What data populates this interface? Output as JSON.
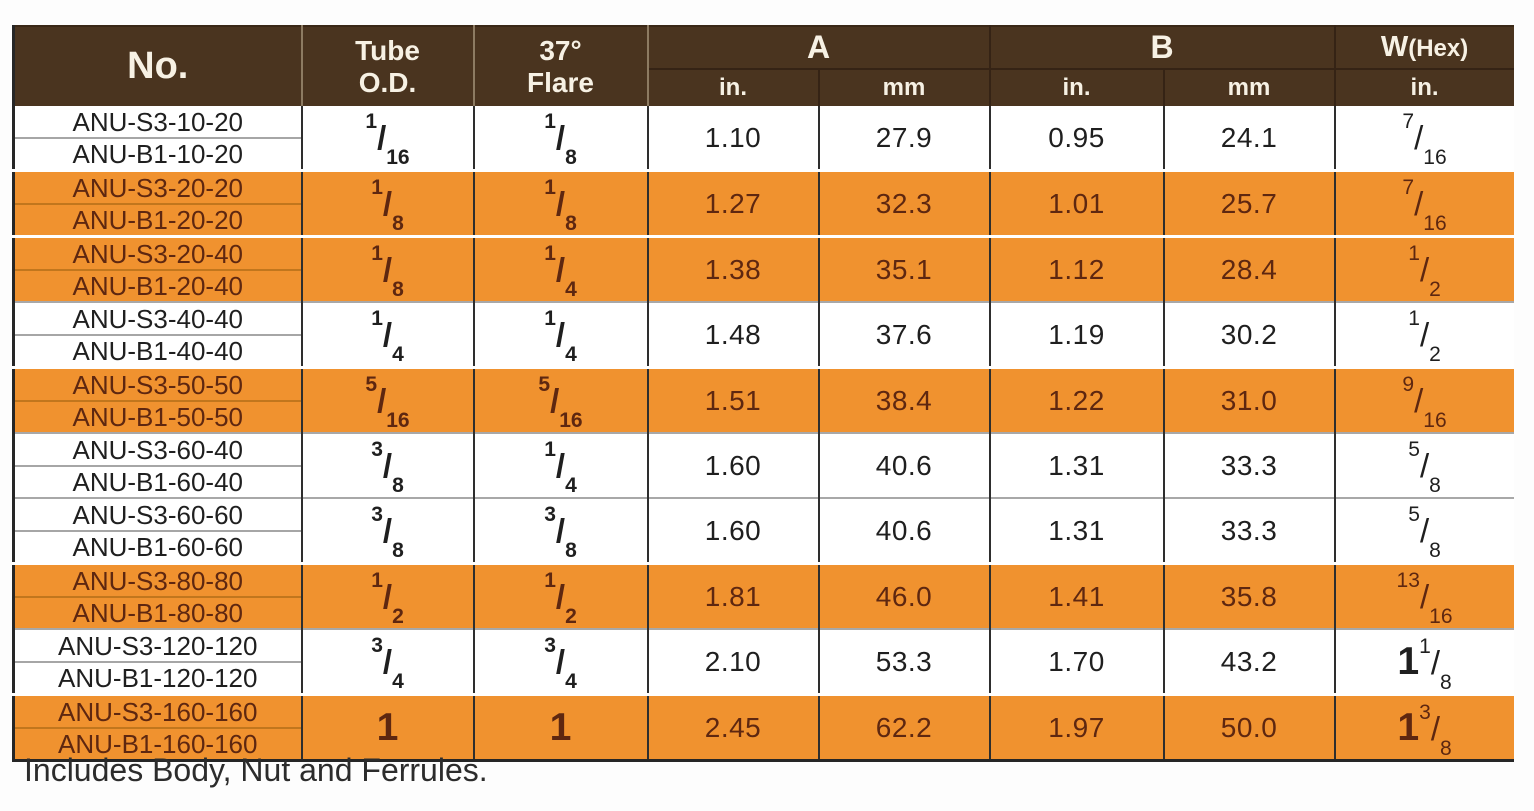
{
  "table": {
    "header": {
      "no": "No.",
      "tube_top": "Tube",
      "tube_bottom": "O.D.",
      "flare_top": "37°",
      "flare_bottom": "Flare",
      "a": "A",
      "b": "B",
      "w_main": "W",
      "w_paren": "(Hex)",
      "unit_in": "in.",
      "unit_mm": "mm"
    },
    "rows": [
      {
        "part_numbers": [
          "ANU-S3-10-20",
          "ANU-B1-10-20"
        ],
        "tube_od": "1/16",
        "flare": "1/8",
        "a_in": "1.10",
        "a_mm": "27.9",
        "b_in": "0.95",
        "b_mm": "24.1",
        "w_hex": "7/16",
        "highlight": false
      },
      {
        "part_numbers": [
          "ANU-S3-20-20",
          "ANU-B1-20-20"
        ],
        "tube_od": "1/8",
        "flare": "1/8",
        "a_in": "1.27",
        "a_mm": "32.3",
        "b_in": "1.01",
        "b_mm": "25.7",
        "w_hex": "7/16",
        "highlight": true
      },
      {
        "part_numbers": [
          "ANU-S3-20-40",
          "ANU-B1-20-40"
        ],
        "tube_od": "1/8",
        "flare": "1/4",
        "a_in": "1.38",
        "a_mm": "35.1",
        "b_in": "1.12",
        "b_mm": "28.4",
        "w_hex": "1/2",
        "highlight": true
      },
      {
        "part_numbers": [
          "ANU-S3-40-40",
          "ANU-B1-40-40"
        ],
        "tube_od": "1/4",
        "flare": "1/4",
        "a_in": "1.48",
        "a_mm": "37.6",
        "b_in": "1.19",
        "b_mm": "30.2",
        "w_hex": "1/2",
        "highlight": false
      },
      {
        "part_numbers": [
          "ANU-S3-50-50",
          "ANU-B1-50-50"
        ],
        "tube_od": "5/16",
        "flare": "5/16",
        "a_in": "1.51",
        "a_mm": "38.4",
        "b_in": "1.22",
        "b_mm": "31.0",
        "w_hex": "9/16",
        "highlight": true
      },
      {
        "part_numbers": [
          "ANU-S3-60-40",
          "ANU-B1-60-40"
        ],
        "tube_od": "3/8",
        "flare": "1/4",
        "a_in": "1.60",
        "a_mm": "40.6",
        "b_in": "1.31",
        "b_mm": "33.3",
        "w_hex": "5/8",
        "highlight": false
      },
      {
        "part_numbers": [
          "ANU-S3-60-60",
          "ANU-B1-60-60"
        ],
        "tube_od": "3/8",
        "flare": "3/8",
        "a_in": "1.60",
        "a_mm": "40.6",
        "b_in": "1.31",
        "b_mm": "33.3",
        "w_hex": "5/8",
        "highlight": false
      },
      {
        "part_numbers": [
          "ANU-S3-80-80",
          "ANU-B1-80-80"
        ],
        "tube_od": "1/2",
        "flare": "1/2",
        "a_in": "1.81",
        "a_mm": "46.0",
        "b_in": "1.41",
        "b_mm": "35.8",
        "w_hex": "13/16",
        "highlight": true
      },
      {
        "part_numbers": [
          "ANU-S3-120-120",
          "ANU-B1-120-120"
        ],
        "tube_od": "3/4",
        "flare": "3/4",
        "a_in": "2.10",
        "a_mm": "53.3",
        "b_in": "1.70",
        "b_mm": "43.2",
        "w_hex": "1 1/8",
        "highlight": false
      },
      {
        "part_numbers": [
          "ANU-S3-160-160",
          "ANU-B1-160-160"
        ],
        "tube_od": "1",
        "flare": "1",
        "a_in": "2.45",
        "a_mm": "62.2",
        "b_in": "1.97",
        "b_mm": "50.0",
        "w_hex": "1 3/8",
        "highlight": true
      }
    ]
  },
  "footer_note": "Includes Body, Nut and Ferrules.",
  "colors": {
    "header_bg": "#4a341f",
    "header_text": "#f7f1e4",
    "highlight_row": "#f0922f",
    "highlight_text": "#5e2710",
    "body_text": "#1f1f1f"
  }
}
